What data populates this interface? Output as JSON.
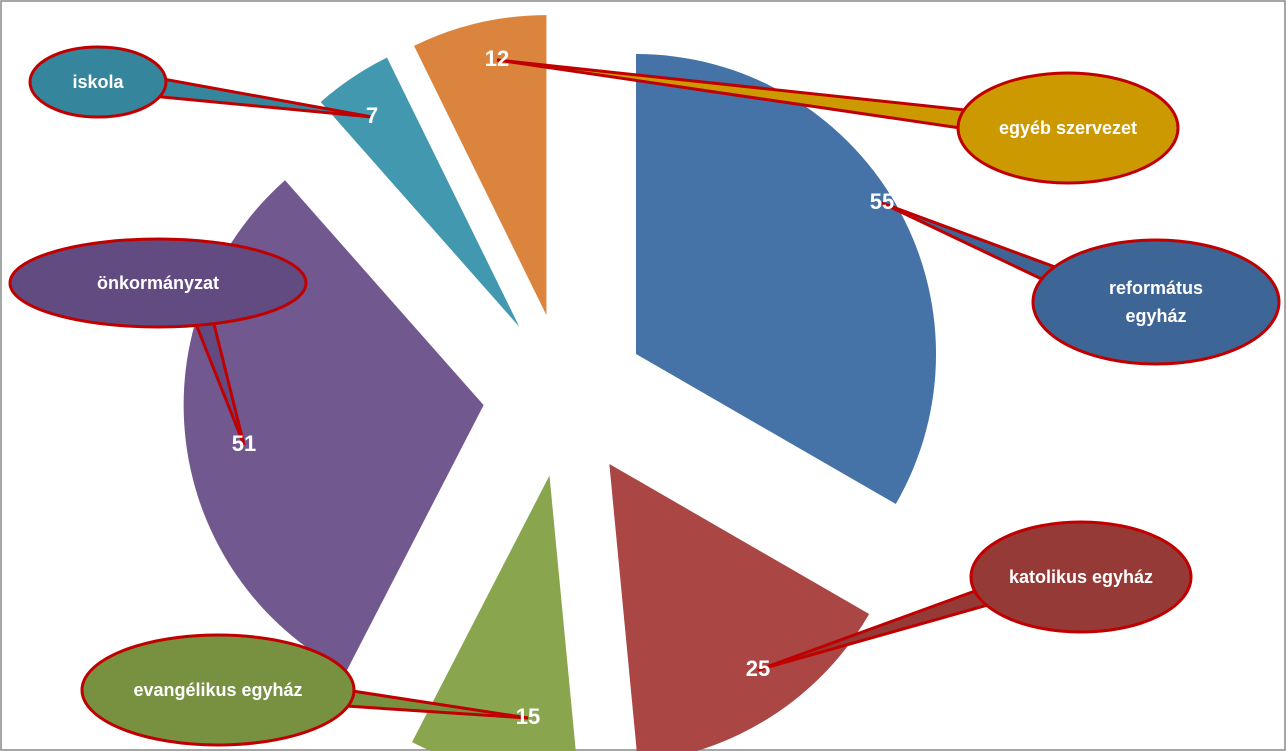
{
  "chart_data": {
    "type": "pie",
    "categories": [
      "református egyház",
      "katolikus egyház",
      "evangélikus egyház",
      "önkormányzat",
      "iskola",
      "egyéb szervezet"
    ],
    "values": [
      55,
      25,
      15,
      51,
      7,
      12
    ],
    "colors": [
      "#4572a7",
      "#aa4643",
      "#89a54e",
      "#71588f",
      "#4198af",
      "#db843d"
    ],
    "callout_colors": [
      "#3d6596",
      "#953a37",
      "#789140",
      "#614b80",
      "#35869c",
      "#cc9a00"
    ]
  }
}
